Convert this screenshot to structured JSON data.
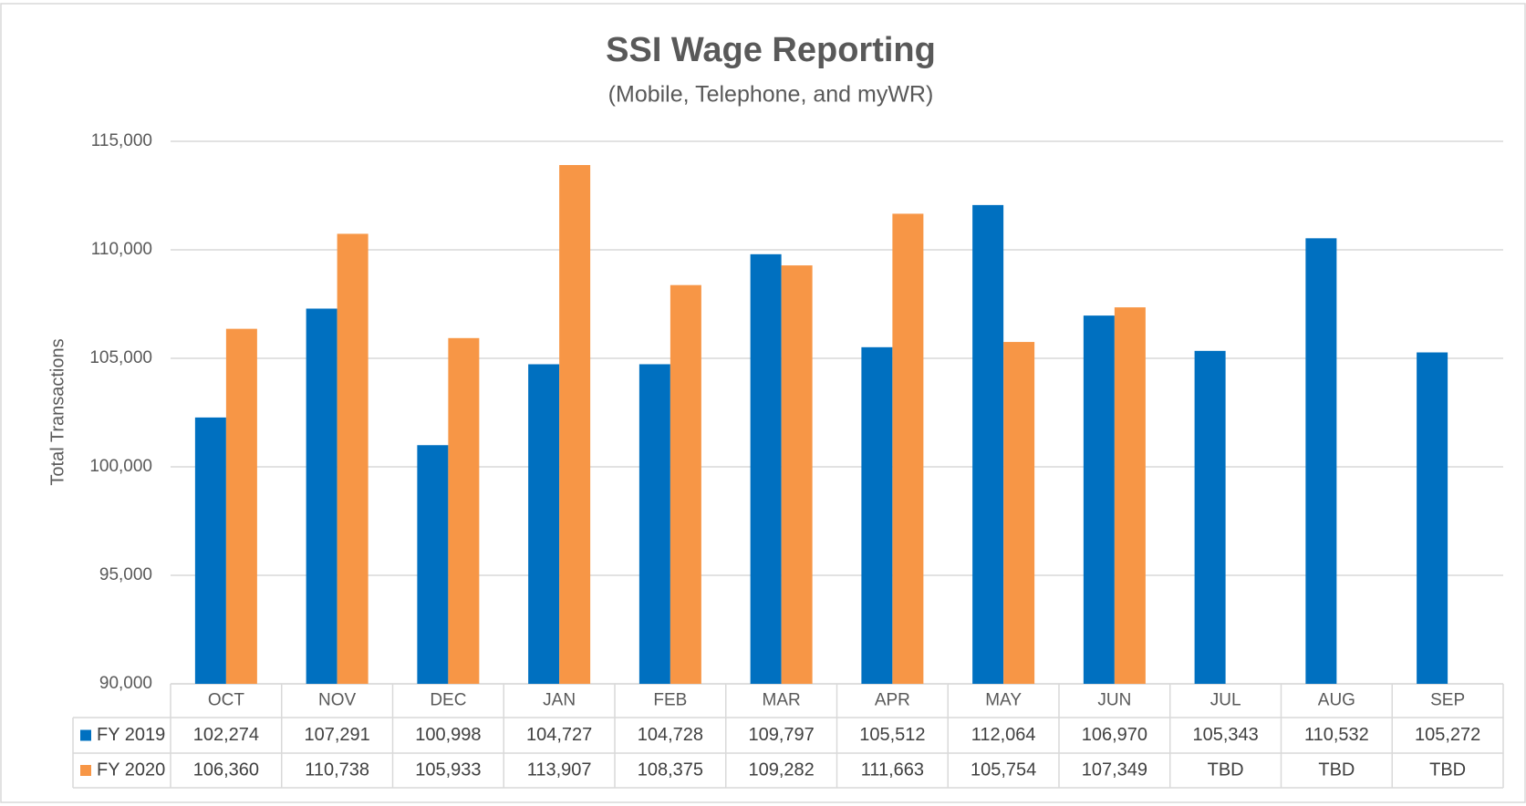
{
  "chart_data": {
    "type": "bar",
    "title": "SSI Wage Reporting",
    "subtitle": "(Mobile, Telephone, and myWR)",
    "y_label": "Total Transactions",
    "categories": [
      "OCT",
      "NOV",
      "DEC",
      "JAN",
      "FEB",
      "MAR",
      "APR",
      "MAY",
      "JUN",
      "JUL",
      "AUG",
      "SEP"
    ],
    "series": [
      {
        "name": "FY 2019",
        "color": "#0070c0",
        "values": [
          102274,
          107291,
          100998,
          104727,
          104728,
          109797,
          105512,
          112064,
          106970,
          105343,
          110532,
          105272
        ],
        "value_labels": [
          "102,274",
          "107,291",
          "100,998",
          "104,727",
          "104,728",
          "109,797",
          "105,512",
          "112,064",
          "106,970",
          "105,343",
          "110,532",
          "105,272"
        ]
      },
      {
        "name": "FY 2020",
        "color": "#f79646",
        "values": [
          106360,
          110738,
          105933,
          113907,
          108375,
          109282,
          111663,
          105754,
          107349,
          null,
          null,
          null
        ],
        "value_labels": [
          "106,360",
          "110,738",
          "105,933",
          "113,907",
          "108,375",
          "109,282",
          "111,663",
          "105,754",
          "107,349",
          "TBD",
          "TBD",
          "TBD"
        ]
      }
    ],
    "ylim": [
      90000,
      115000
    ],
    "yticks": [
      {
        "value": 90000,
        "label": "90,000"
      },
      {
        "value": 95000,
        "label": "95,000"
      },
      {
        "value": 100000,
        "label": "100,000"
      },
      {
        "value": 105000,
        "label": "105,000"
      },
      {
        "value": 110000,
        "label": "110,000"
      },
      {
        "value": 115000,
        "label": "115,000"
      }
    ],
    "grid": true,
    "legend": "data-table"
  }
}
